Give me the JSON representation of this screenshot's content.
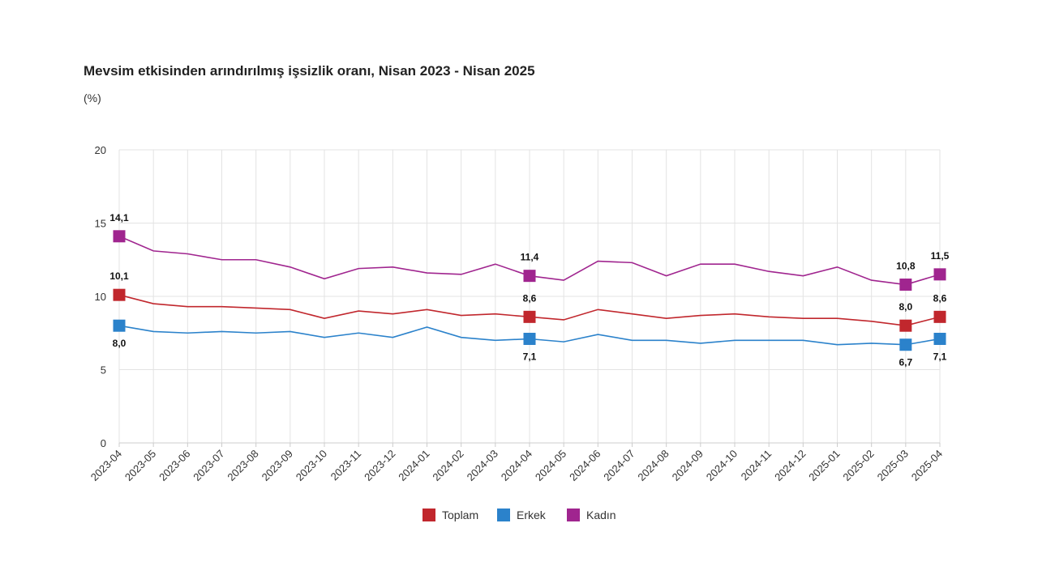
{
  "chart_data": {
    "type": "line",
    "title": "Mevsim etkisinden arındırılmış işsizlik oranı, Nisan 2023 - Nisan 2025",
    "unit": "(%)",
    "xlabel": "",
    "ylabel": "",
    "ylim": [
      0,
      20
    ],
    "yticks": [
      "0",
      "5",
      "10",
      "15",
      "20"
    ],
    "grid": true,
    "legend_position": "bottom-center",
    "categories": [
      "2023-04",
      "2023-05",
      "2023-06",
      "2023-07",
      "2023-08",
      "2023-09",
      "2023-10",
      "2023-11",
      "2023-12",
      "2024-01",
      "2024-02",
      "2024-03",
      "2024-04",
      "2024-05",
      "2024-06",
      "2024-07",
      "2024-08",
      "2024-09",
      "2024-10",
      "2024-11",
      "2024-12",
      "2025-01",
      "2025-02",
      "2025-03",
      "2025-04"
    ],
    "series": [
      {
        "name": "Toplam",
        "color": "#c1272d",
        "values": [
          10.1,
          9.5,
          9.3,
          9.3,
          9.2,
          9.1,
          8.5,
          9.0,
          8.8,
          9.1,
          8.7,
          8.8,
          8.6,
          8.4,
          9.1,
          8.8,
          8.5,
          8.7,
          8.8,
          8.6,
          8.5,
          8.5,
          8.3,
          8.0,
          8.6
        ],
        "labels": [
          {
            "index": 0,
            "text": "10,1",
            "pos": "above"
          },
          {
            "index": 12,
            "text": "8,6",
            "pos": "above"
          },
          {
            "index": 23,
            "text": "8,0",
            "pos": "above"
          },
          {
            "index": 24,
            "text": "8,6",
            "pos": "above"
          }
        ]
      },
      {
        "name": "Erkek",
        "color": "#2b82cb",
        "values": [
          8.0,
          7.6,
          7.5,
          7.6,
          7.5,
          7.6,
          7.2,
          7.5,
          7.2,
          7.9,
          7.2,
          7.0,
          7.1,
          6.9,
          7.4,
          7.0,
          7.0,
          6.8,
          7.0,
          7.0,
          7.0,
          6.7,
          6.8,
          6.7,
          7.1
        ],
        "labels": [
          {
            "index": 0,
            "text": "8,0",
            "pos": "below"
          },
          {
            "index": 12,
            "text": "7,1",
            "pos": "below"
          },
          {
            "index": 23,
            "text": "6,7",
            "pos": "below"
          },
          {
            "index": 24,
            "text": "7,1",
            "pos": "below"
          }
        ]
      },
      {
        "name": "Kadın",
        "color": "#a0258f",
        "values": [
          14.1,
          13.1,
          12.9,
          12.5,
          12.5,
          12.0,
          11.2,
          11.9,
          12.0,
          11.6,
          11.5,
          12.2,
          11.4,
          11.1,
          12.4,
          12.3,
          11.4,
          12.2,
          12.2,
          11.7,
          11.4,
          12.0,
          11.1,
          10.8,
          11.5
        ],
        "labels": [
          {
            "index": 0,
            "text": "14,1",
            "pos": "above"
          },
          {
            "index": 12,
            "text": "11,4",
            "pos": "above"
          },
          {
            "index": 23,
            "text": "10,8",
            "pos": "above"
          },
          {
            "index": 24,
            "text": "11,5",
            "pos": "above"
          }
        ]
      }
    ]
  }
}
